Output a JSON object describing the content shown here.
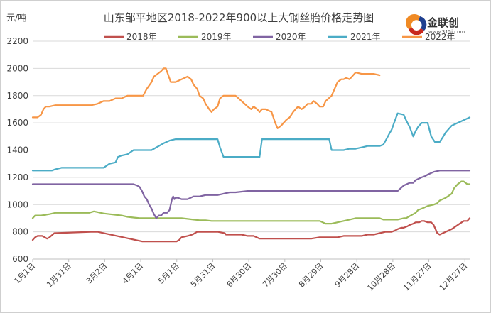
{
  "logo": {
    "name": "金联创",
    "url": "www.315i.com",
    "colors": {
      "orange": "#f08a24",
      "blue": "#1f3f8f",
      "red": "#c8281e"
    }
  },
  "chart_data": {
    "type": "line",
    "title": "山东邹平地区2018-2022年900以上大钢丝胎价格走势图",
    "ylabel": "元/吨",
    "xlabel": "",
    "ylim": [
      600,
      2200
    ],
    "yticks": [
      600,
      800,
      1000,
      1200,
      1400,
      1600,
      1800,
      2000,
      2200
    ],
    "xlim": [
      1,
      365
    ],
    "xticks": [
      {
        "label": "1月1日",
        "day": 1
      },
      {
        "label": "1月31日",
        "day": 31
      },
      {
        "label": "3月2日",
        "day": 61
      },
      {
        "label": "4月1日",
        "day": 91
      },
      {
        "label": "5月1日",
        "day": 121
      },
      {
        "label": "5月31日",
        "day": 151
      },
      {
        "label": "6月30日",
        "day": 181
      },
      {
        "label": "7月30日",
        "day": 211
      },
      {
        "label": "8月29日",
        "day": 241
      },
      {
        "label": "9月28日",
        "day": 271
      },
      {
        "label": "10月28日",
        "day": 301
      },
      {
        "label": "11月27日",
        "day": 331
      },
      {
        "label": "12月27日",
        "day": 361
      }
    ],
    "grid": true,
    "legend_position": "top",
    "series": [
      {
        "name": "2018年",
        "color": "#c0504d",
        "x": [
          1,
          3,
          5,
          9,
          13,
          15,
          19,
          50,
          52,
          55,
          92,
          98,
          100,
          110,
          115,
          121,
          123,
          125,
          130,
          134,
          138,
          145,
          150,
          155,
          161,
          162,
          175,
          180,
          185,
          190,
          200,
          205,
          215,
          220,
          228,
          233,
          240,
          245,
          255,
          260,
          265,
          275,
          280,
          285,
          290,
          295,
          300,
          303,
          305,
          308,
          310,
          313,
          315,
          318,
          320,
          323,
          325,
          327,
          330,
          333,
          335,
          338,
          340,
          345,
          350,
          360,
          363,
          365
        ],
        "y": [
          740,
          760,
          770,
          770,
          750,
          760,
          790,
          800,
          800,
          800,
          730,
          730,
          730,
          730,
          730,
          730,
          740,
          760,
          770,
          780,
          800,
          800,
          800,
          800,
          790,
          780,
          780,
          770,
          770,
          750,
          750,
          750,
          750,
          750,
          750,
          750,
          760,
          760,
          760,
          770,
          770,
          770,
          780,
          780,
          790,
          800,
          800,
          810,
          820,
          830,
          830,
          840,
          850,
          860,
          870,
          870,
          880,
          880,
          870,
          870,
          850,
          790,
          780,
          800,
          820,
          880,
          880,
          900
        ]
      },
      {
        "name": "2019年",
        "color": "#9bbb59",
        "x": [
          1,
          3,
          5,
          8,
          12,
          15,
          20,
          30,
          40,
          48,
          50,
          52,
          55,
          60,
          65,
          70,
          75,
          80,
          85,
          90,
          95,
          100,
          110,
          120,
          125,
          130,
          135,
          140,
          145,
          150,
          160,
          170,
          180,
          190,
          200,
          210,
          220,
          230,
          235,
          240,
          245,
          250,
          255,
          260,
          265,
          270,
          280,
          290,
          293,
          300,
          305,
          310,
          312,
          314,
          316,
          320,
          322,
          325,
          330,
          335,
          338,
          340,
          345,
          350,
          352,
          355,
          358,
          360,
          363,
          365
        ],
        "y": [
          900,
          920,
          920,
          920,
          925,
          930,
          940,
          940,
          940,
          940,
          945,
          950,
          945,
          935,
          930,
          925,
          920,
          910,
          905,
          900,
          900,
          900,
          900,
          900,
          900,
          895,
          890,
          885,
          885,
          880,
          880,
          880,
          880,
          880,
          880,
          880,
          880,
          880,
          880,
          880,
          860,
          860,
          870,
          880,
          890,
          900,
          900,
          900,
          890,
          890,
          890,
          900,
          900,
          910,
          920,
          940,
          960,
          970,
          990,
          1000,
          1010,
          1030,
          1050,
          1080,
          1120,
          1150,
          1170,
          1170,
          1150,
          1150
        ]
      },
      {
        "name": "2020年",
        "color": "#8064a2",
        "x": [
          1,
          10,
          20,
          30,
          40,
          50,
          60,
          70,
          80,
          85,
          88,
          90,
          92,
          94,
          96,
          98,
          100,
          102,
          104,
          106,
          108,
          110,
          113,
          115,
          117,
          118,
          119,
          120,
          122,
          125,
          130,
          135,
          140,
          145,
          150,
          155,
          160,
          165,
          170,
          180,
          190,
          200,
          210,
          220,
          230,
          240,
          250,
          260,
          270,
          280,
          290,
          295,
          300,
          305,
          310,
          315,
          318,
          320,
          325,
          328,
          330,
          335,
          340,
          350,
          360,
          365
        ],
        "y": [
          1150,
          1150,
          1150,
          1150,
          1150,
          1150,
          1150,
          1150,
          1150,
          1150,
          1140,
          1130,
          1100,
          1060,
          1040,
          1000,
          970,
          930,
          900,
          920,
          920,
          940,
          940,
          960,
          1040,
          1060,
          1040,
          1050,
          1050,
          1040,
          1040,
          1060,
          1060,
          1070,
          1070,
          1070,
          1080,
          1090,
          1090,
          1100,
          1100,
          1100,
          1100,
          1100,
          1100,
          1100,
          1100,
          1100,
          1100,
          1100,
          1100,
          1100,
          1100,
          1100,
          1140,
          1160,
          1160,
          1180,
          1200,
          1210,
          1220,
          1240,
          1250,
          1250,
          1250,
          1250
        ]
      },
      {
        "name": "2021年",
        "color": "#4bacc6",
        "x": [
          1,
          10,
          17,
          20,
          25,
          30,
          40,
          50,
          52,
          60,
          65,
          70,
          72,
          75,
          80,
          85,
          90,
          95,
          100,
          110,
          115,
          120,
          130,
          140,
          150,
          155,
          157,
          160,
          170,
          180,
          190,
          192,
          200,
          210,
          220,
          230,
          235,
          238,
          240,
          243,
          245,
          248,
          250,
          255,
          260,
          265,
          270,
          275,
          280,
          290,
          293,
          295,
          298,
          300,
          302,
          305,
          310,
          312,
          315,
          318,
          320,
          322,
          325,
          328,
          330,
          333,
          336,
          340,
          343,
          345,
          348,
          350,
          355,
          360,
          365
        ],
        "y": [
          1250,
          1250,
          1250,
          1260,
          1270,
          1270,
          1270,
          1270,
          1270,
          1270,
          1300,
          1310,
          1350,
          1360,
          1370,
          1400,
          1400,
          1400,
          1400,
          1450,
          1470,
          1480,
          1480,
          1480,
          1480,
          1480,
          1420,
          1350,
          1350,
          1350,
          1350,
          1480,
          1480,
          1480,
          1480,
          1480,
          1480,
          1480,
          1480,
          1480,
          1480,
          1480,
          1400,
          1400,
          1400,
          1410,
          1410,
          1420,
          1430,
          1430,
          1440,
          1470,
          1520,
          1550,
          1600,
          1670,
          1660,
          1620,
          1570,
          1500,
          1540,
          1570,
          1600,
          1600,
          1600,
          1500,
          1460,
          1460,
          1500,
          1530,
          1560,
          1580,
          1600,
          1620,
          1640
        ]
      },
      {
        "name": "2022年",
        "color": "#f79646",
        "x": [
          1,
          5,
          8,
          10,
          12,
          15,
          20,
          30,
          40,
          50,
          55,
          60,
          65,
          70,
          75,
          80,
          85,
          90,
          93,
          96,
          100,
          102,
          105,
          108,
          110,
          112,
          114,
          116,
          118,
          120,
          125,
          130,
          133,
          135,
          138,
          140,
          143,
          145,
          148,
          150,
          152,
          155,
          157,
          160,
          165,
          170,
          175,
          180,
          183,
          185,
          188,
          190,
          192,
          195,
          200,
          203,
          205,
          208,
          210,
          212,
          215,
          218,
          220,
          222,
          225,
          228,
          230,
          233,
          235,
          238,
          240,
          243,
          245,
          250,
          255,
          258,
          260,
          262,
          265,
          270,
          275,
          280,
          285,
          290
        ],
        "y": [
          1640,
          1640,
          1660,
          1700,
          1720,
          1720,
          1730,
          1730,
          1730,
          1730,
          1740,
          1760,
          1760,
          1780,
          1780,
          1800,
          1800,
          1800,
          1800,
          1850,
          1900,
          1940,
          1960,
          1980,
          2000,
          2000,
          1950,
          1900,
          1900,
          1900,
          1920,
          1940,
          1920,
          1880,
          1850,
          1800,
          1780,
          1740,
          1700,
          1680,
          1700,
          1720,
          1780,
          1800,
          1800,
          1800,
          1760,
          1720,
          1700,
          1720,
          1700,
          1680,
          1700,
          1700,
          1680,
          1600,
          1560,
          1580,
          1600,
          1620,
          1640,
          1680,
          1700,
          1720,
          1700,
          1720,
          1740,
          1740,
          1760,
          1740,
          1720,
          1720,
          1760,
          1800,
          1900,
          1920,
          1920,
          1930,
          1920,
          1970,
          1960,
          1960,
          1960,
          1950
        ]
      }
    ]
  }
}
